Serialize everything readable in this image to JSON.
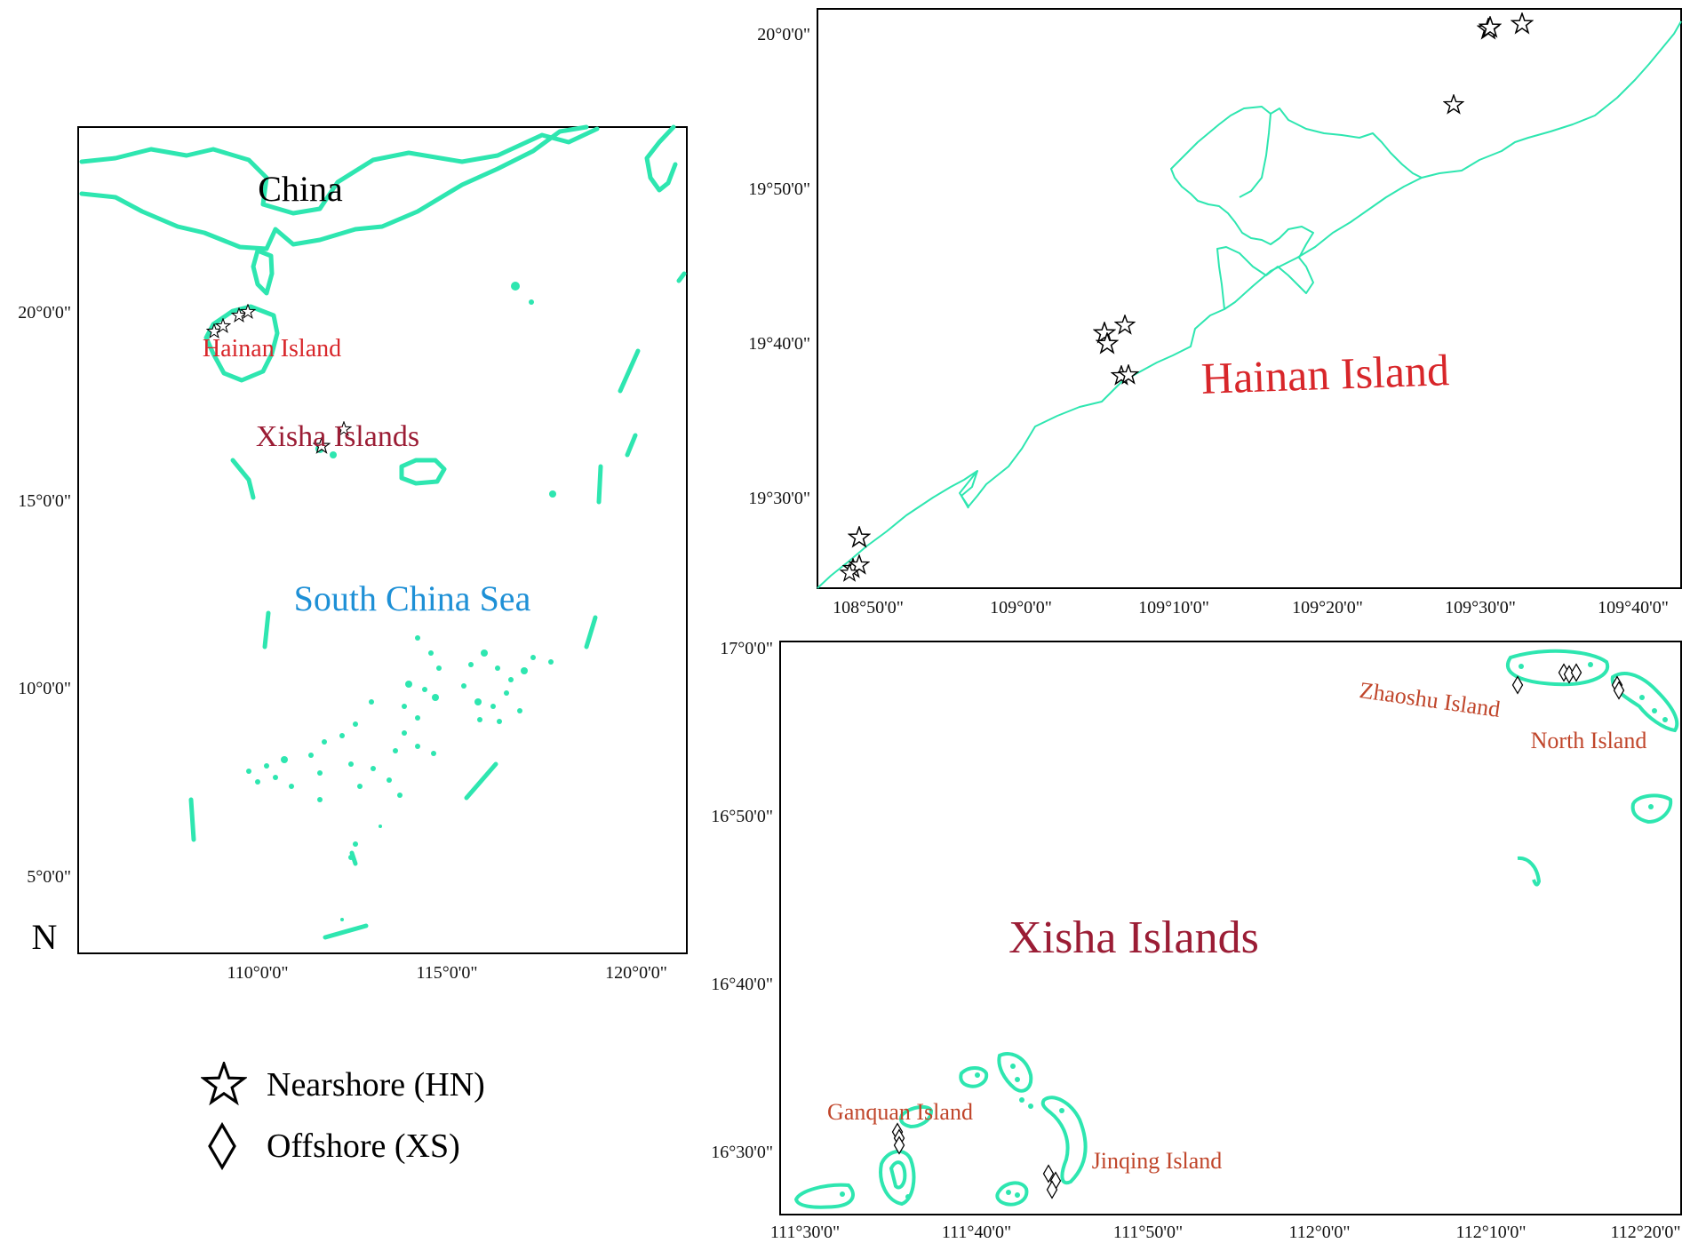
{
  "overview_map": {
    "labels": {
      "china": "China",
      "hainan": "Hainan Island",
      "xisha": "Xisha Islands",
      "scs": "South China Sea",
      "north": "N"
    },
    "lat_ticks": [
      "20°0'0\"",
      "15°0'0\"",
      "10°0'0\"",
      "5°0'0\""
    ],
    "lon_ticks": [
      "110°0'0\"",
      "115°0'0\"",
      "120°0'0\""
    ]
  },
  "hainan_map": {
    "title": "Hainan Island",
    "lat_ticks": [
      "20°0'0\"",
      "19°50'0\"",
      "19°40'0\"",
      "19°30'0\""
    ],
    "lon_ticks": [
      "108°50'0\"",
      "109°0'0\"",
      "109°10'0\"",
      "109°20'0\"",
      "109°30'0\"",
      "109°40'0\""
    ]
  },
  "xisha_map": {
    "title": "Xisha Islands",
    "island_labels": {
      "zhaoshu": "Zhaoshu Island",
      "north": "North Island",
      "ganquan": "Ganquan Island",
      "jinqing": "Jinqing Island"
    },
    "lat_ticks": [
      "17°0'0\"",
      "16°50'0\"",
      "16°40'0\"",
      "16°30'0\""
    ],
    "lon_ticks": [
      "111°30'0\"",
      "111°40'0\"",
      "111°50'0\"",
      "112°0'0\"",
      "112°10'0\"",
      "112°20'0\""
    ]
  },
  "legend": {
    "nearshore": "Nearshore (HN)",
    "offshore": "Offshore (XS)"
  },
  "colors": {
    "coastline": "#2ee6b0",
    "hainan_label": "#d8262a",
    "xisha_label": "#9b1d35",
    "scs_label": "#1e90d6",
    "island_label": "#c0452a"
  }
}
